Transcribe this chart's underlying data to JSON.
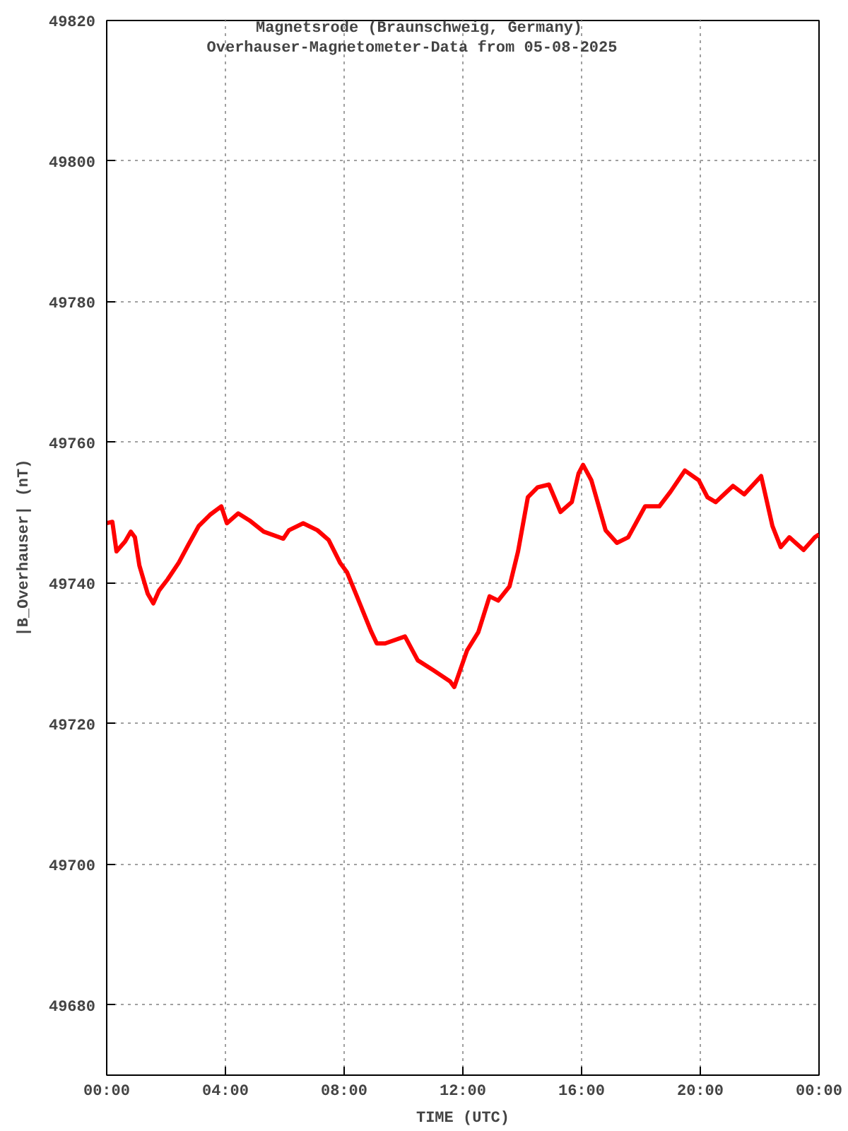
{
  "chart_data": {
    "type": "line",
    "title": "Magnetsrode (Braunschweig, Germany)",
    "subtitle": "Overhauser-Magnetometer-Data from 05-08-2025",
    "xlabel": "TIME (UTC)",
    "ylabel": "|B_Overhauser| (nT)",
    "x": [
      0.0,
      0.19,
      0.33,
      0.62,
      0.81,
      0.95,
      1.1,
      1.38,
      1.57,
      1.76,
      2.05,
      2.43,
      2.76,
      3.1,
      3.48,
      3.86,
      4.05,
      4.43,
      4.81,
      5.29,
      5.95,
      6.14,
      6.62,
      7.1,
      7.48,
      7.86,
      8.1,
      8.43,
      8.9,
      9.1,
      9.38,
      10.05,
      10.48,
      11.0,
      11.57,
      11.71,
      12.14,
      12.52,
      12.9,
      13.19,
      13.57,
      13.86,
      14.19,
      14.52,
      14.9,
      15.29,
      15.67,
      15.9,
      16.05,
      16.33,
      16.81,
      17.19,
      17.57,
      18.14,
      18.62,
      19.0,
      19.48,
      19.95,
      20.24,
      20.52,
      21.1,
      21.48,
      22.05,
      22.43,
      22.71,
      23.0,
      23.48,
      23.86,
      24.0
    ],
    "series": [
      {
        "color": "#ff0000",
        "values": [
          49748.5,
          49748.7,
          49744.5,
          49745.9,
          49747.3,
          49746.5,
          49742.5,
          49738.5,
          49737.1,
          49738.9,
          49740.5,
          49742.9,
          49745.5,
          49748.1,
          49749.7,
          49750.9,
          49748.5,
          49749.9,
          49748.9,
          49747.3,
          49746.3,
          49747.5,
          49748.5,
          49747.5,
          49746.1,
          49742.9,
          49741.5,
          49738.1,
          49733.2,
          49731.4,
          49731.4,
          49732.4,
          49729.0,
          49727.6,
          49726.0,
          49725.2,
          49730.4,
          49733.0,
          49738.1,
          49737.5,
          49739.5,
          49744.5,
          49752.2,
          49753.6,
          49754.0,
          49750.1,
          49751.5,
          49755.6,
          49756.8,
          49754.6,
          49747.5,
          49745.7,
          49746.5,
          49750.9,
          49750.9,
          49753.0,
          49756.0,
          49754.6,
          49752.2,
          49751.5,
          49753.8,
          49752.6,
          49755.2,
          49748.1,
          49745.1,
          49746.5,
          49744.7,
          49746.5,
          49746.9
        ]
      }
    ],
    "xlim": [
      0,
      24
    ],
    "xticks": [
      {
        "value": 0,
        "label": "00:00"
      },
      {
        "value": 4,
        "label": "04:00"
      },
      {
        "value": 8,
        "label": "08:00"
      },
      {
        "value": 12,
        "label": "12:00"
      },
      {
        "value": 16,
        "label": "16:00"
      },
      {
        "value": 20,
        "label": "20:00"
      },
      {
        "value": 24,
        "label": "00:00"
      }
    ],
    "ylim": [
      49670,
      49820
    ],
    "yticks": [
      49680,
      49700,
      49720,
      49740,
      49760,
      49780,
      49800,
      49820
    ],
    "grid": true,
    "marker": "none",
    "line_style": "solid"
  }
}
